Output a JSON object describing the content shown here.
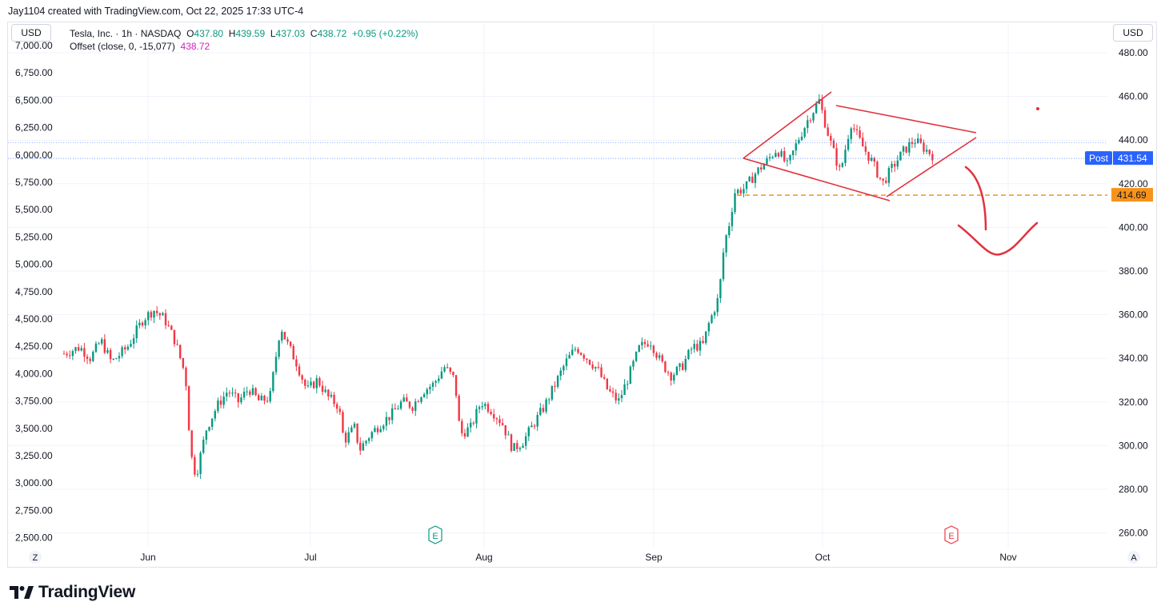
{
  "credit": "Jay1104 created with TradingView.com, Oct 22, 2025 17:33 UTC-4",
  "currency_left": "USD",
  "currency_right": "USD",
  "legend": {
    "symbol": "Tesla, Inc. · 1h · NASDAQ",
    "o_label": "O",
    "o_value": "437.80",
    "h_label": "H",
    "h_value": "439.59",
    "l_label": "L",
    "l_value": "437.03",
    "c_label": "C",
    "c_value": "438.72",
    "change": "+0.95 (+0.22%)",
    "indicator": "Offset (close, 0, -15,077)",
    "indicator_value": "438.72"
  },
  "brand": "TradingView",
  "colors": {
    "up": "#089981",
    "down": "#f23645",
    "drawing": "#e0323e",
    "post": "#2962ff",
    "level": "#f7931a"
  },
  "chart_data": {
    "type": "candlestick",
    "title": "Tesla, Inc. · 1h · NASDAQ",
    "x_labels": [
      "Jun",
      "Jul",
      "Aug",
      "Sep",
      "Oct",
      "Nov"
    ],
    "y_right": {
      "ticks": [
        "480.00",
        "460.00",
        "440.00",
        "420.00",
        "400.00",
        "380.00",
        "360.00",
        "340.00",
        "320.00",
        "300.00",
        "280.00",
        "260.00"
      ],
      "range": [
        252,
        483
      ]
    },
    "y_left": {
      "ticks": [
        "7,000.00",
        "6,750.00",
        "6,500.00",
        "6,250.00",
        "6,000.00",
        "5,750.00",
        "5,500.00",
        "5,250.00",
        "5,000.00",
        "4,750.00",
        "4,500.00",
        "4,250.00",
        "4,000.00",
        "3,750.00",
        "3,500.00",
        "3,250.00",
        "3,000.00",
        "2,750.00",
        "2,500.00"
      ]
    },
    "price_path": [
      {
        "d": 0,
        "v": 342
      },
      {
        "d": 3,
        "v": 345
      },
      {
        "d": 5,
        "v": 340
      },
      {
        "d": 7,
        "v": 348
      },
      {
        "d": 9,
        "v": 338
      },
      {
        "d": 12,
        "v": 345
      },
      {
        "d": 15,
        "v": 358
      },
      {
        "d": 17,
        "v": 362
      },
      {
        "d": 19,
        "v": 358
      },
      {
        "d": 21,
        "v": 348
      },
      {
        "d": 23,
        "v": 332
      },
      {
        "d": 24,
        "v": 296
      },
      {
        "d": 25,
        "v": 286
      },
      {
        "d": 27,
        "v": 308
      },
      {
        "d": 29,
        "v": 318
      },
      {
        "d": 31,
        "v": 325
      },
      {
        "d": 33,
        "v": 320
      },
      {
        "d": 35,
        "v": 326
      },
      {
        "d": 37,
        "v": 320
      },
      {
        "d": 39,
        "v": 322
      },
      {
        "d": 41,
        "v": 355
      },
      {
        "d": 42,
        "v": 348
      },
      {
        "d": 44,
        "v": 338
      },
      {
        "d": 46,
        "v": 325
      },
      {
        "d": 48,
        "v": 330
      },
      {
        "d": 50,
        "v": 322
      },
      {
        "d": 52,
        "v": 318
      },
      {
        "d": 53,
        "v": 302
      },
      {
        "d": 55,
        "v": 308
      },
      {
        "d": 56,
        "v": 298
      },
      {
        "d": 58,
        "v": 305
      },
      {
        "d": 60,
        "v": 310
      },
      {
        "d": 62,
        "v": 314
      },
      {
        "d": 64,
        "v": 320
      },
      {
        "d": 66,
        "v": 318
      },
      {
        "d": 68,
        "v": 325
      },
      {
        "d": 70,
        "v": 328
      },
      {
        "d": 72,
        "v": 336
      },
      {
        "d": 74,
        "v": 330
      },
      {
        "d": 75,
        "v": 305
      },
      {
        "d": 77,
        "v": 308
      },
      {
        "d": 79,
        "v": 320
      },
      {
        "d": 81,
        "v": 316
      },
      {
        "d": 83,
        "v": 310
      },
      {
        "d": 85,
        "v": 298
      },
      {
        "d": 87,
        "v": 302
      },
      {
        "d": 89,
        "v": 310
      },
      {
        "d": 91,
        "v": 318
      },
      {
        "d": 93,
        "v": 328
      },
      {
        "d": 95,
        "v": 338
      },
      {
        "d": 97,
        "v": 345
      },
      {
        "d": 99,
        "v": 340
      },
      {
        "d": 101,
        "v": 335
      },
      {
        "d": 103,
        "v": 325
      },
      {
        "d": 105,
        "v": 320
      },
      {
        "d": 107,
        "v": 332
      },
      {
        "d": 109,
        "v": 345
      },
      {
        "d": 111,
        "v": 348
      },
      {
        "d": 113,
        "v": 338
      },
      {
        "d": 115,
        "v": 332
      },
      {
        "d": 117,
        "v": 336
      },
      {
        "d": 119,
        "v": 345
      },
      {
        "d": 121,
        "v": 346
      },
      {
        "d": 122,
        "v": 355
      },
      {
        "d": 124,
        "v": 368
      },
      {
        "d": 125,
        "v": 392
      },
      {
        "d": 126,
        "v": 402
      },
      {
        "d": 127,
        "v": 416
      },
      {
        "d": 129,
        "v": 418
      },
      {
        "d": 131,
        "v": 425
      },
      {
        "d": 133,
        "v": 430
      },
      {
        "d": 135,
        "v": 436
      },
      {
        "d": 137,
        "v": 428
      },
      {
        "d": 139,
        "v": 440
      },
      {
        "d": 141,
        "v": 450
      },
      {
        "d": 143,
        "v": 458
      },
      {
        "d": 145,
        "v": 440
      },
      {
        "d": 147,
        "v": 425
      },
      {
        "d": 149,
        "v": 448
      },
      {
        "d": 151,
        "v": 438
      },
      {
        "d": 153,
        "v": 430
      },
      {
        "d": 155,
        "v": 420
      },
      {
        "d": 157,
        "v": 428
      },
      {
        "d": 159,
        "v": 435
      },
      {
        "d": 161,
        "v": 440
      },
      {
        "d": 163,
        "v": 436
      },
      {
        "d": 165,
        "v": 432
      }
    ],
    "annotations": {
      "post_price": "431.54",
      "post_label": "Post",
      "support_level": "414.69",
      "earnings_markers": [
        "E",
        "E"
      ],
      "pattern": "diamond top with projected decline"
    }
  }
}
